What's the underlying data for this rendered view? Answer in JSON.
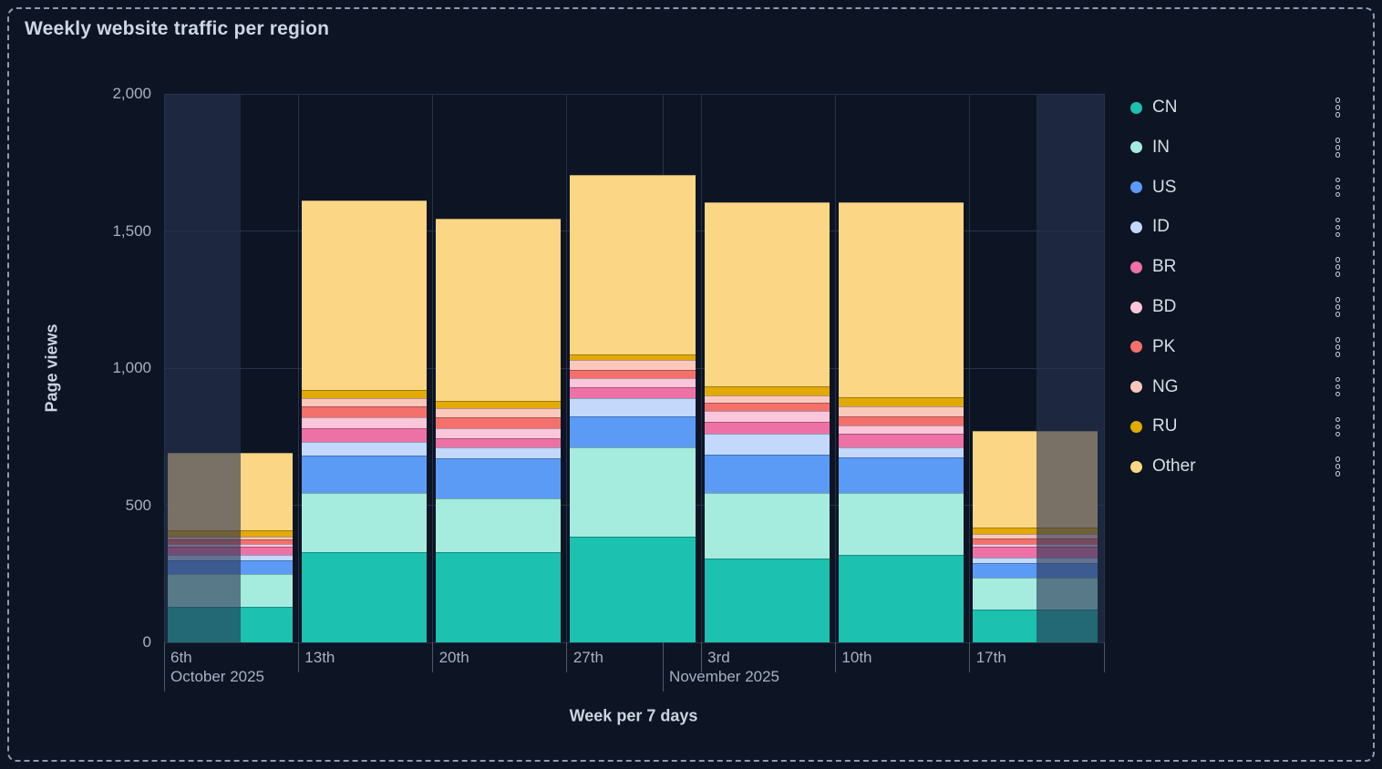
{
  "panel": {
    "title": "Weekly website traffic per region"
  },
  "chart_data": {
    "type": "bar",
    "stacked": true,
    "title": "Weekly website traffic per region",
    "xlabel": "Week per 7 days",
    "ylabel": "Page views",
    "ylim": [
      0,
      2000
    ],
    "grid": true,
    "legend_position": "right",
    "y_ticks": [
      {
        "value": 0,
        "label": "0"
      },
      {
        "value": 500,
        "label": "500"
      },
      {
        "value": 1000,
        "label": "1,000"
      },
      {
        "value": 1500,
        "label": "1,500"
      },
      {
        "value": 2000,
        "label": "2,000"
      }
    ],
    "categories": [
      "6th",
      "13th",
      "20th",
      "27th",
      "3rd",
      "10th",
      "17th"
    ],
    "month_labels": [
      {
        "label": "October 2025",
        "week_index": 0,
        "offset_days": 0
      },
      {
        "label": "November 2025",
        "week_index": 3,
        "offset_days": 5
      }
    ],
    "out_of_range_shading": {
      "left_days": 4,
      "right_days": 3.5
    },
    "series": [
      {
        "name": "CN",
        "color": "#1CC1AF",
        "values": [
          130,
          330,
          330,
          385,
          305,
          320,
          120
        ]
      },
      {
        "name": "IN",
        "color": "#A5ECDF",
        "values": [
          120,
          215,
          195,
          325,
          240,
          225,
          115
        ]
      },
      {
        "name": "US",
        "color": "#5C9BF5",
        "values": [
          50,
          135,
          145,
          115,
          140,
          130,
          55
        ]
      },
      {
        "name": "ID",
        "color": "#C3D8FB",
        "values": [
          20,
          50,
          40,
          65,
          75,
          35,
          20
        ]
      },
      {
        "name": "BR",
        "color": "#EE71A6",
        "values": [
          30,
          50,
          35,
          40,
          45,
          50,
          40
        ]
      },
      {
        "name": "BD",
        "color": "#FBC5DA",
        "values": [
          10,
          40,
          35,
          35,
          40,
          30,
          10
        ]
      },
      {
        "name": "PK",
        "color": "#F4706B",
        "values": [
          15,
          40,
          40,
          30,
          30,
          35,
          20
        ]
      },
      {
        "name": "NG",
        "color": "#FBC8BB",
        "values": [
          10,
          30,
          35,
          35,
          25,
          35,
          15
        ]
      },
      {
        "name": "RU",
        "color": "#E2AA06",
        "values": [
          25,
          30,
          25,
          20,
          35,
          35,
          25
        ]
      },
      {
        "name": "Other",
        "color": "#FBD684",
        "values": [
          280,
          690,
          665,
          655,
          670,
          710,
          350
        ]
      }
    ]
  },
  "legend": {
    "row_menu_icon": "kebab-menu-icon"
  }
}
